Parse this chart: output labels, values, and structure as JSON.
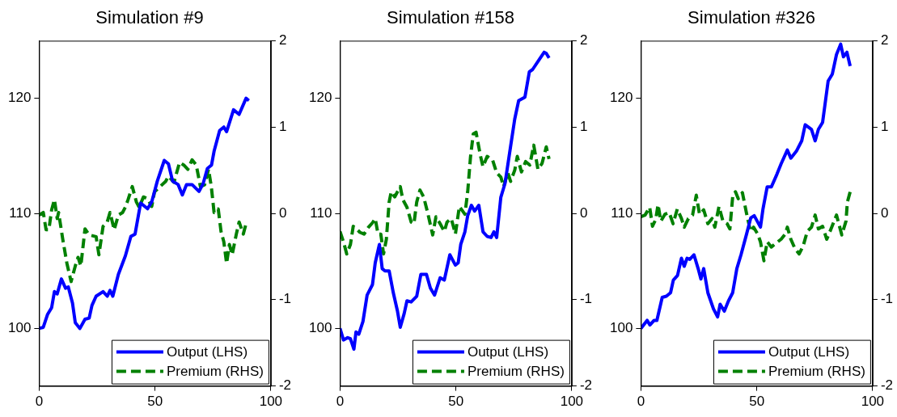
{
  "chart_data": [
    {
      "type": "line",
      "title": "Simulation #9",
      "xlim": [
        0,
        100
      ],
      "xticks": [
        0,
        50,
        100
      ],
      "ylim": [
        95,
        125
      ],
      "yticks": [
        100,
        110,
        120
      ],
      "y2lim": [
        -2,
        2
      ],
      "y2ticks": [
        -2,
        -1,
        0,
        1,
        2
      ],
      "legend": "bottom right",
      "series": [
        {
          "name": "Output (LHS)",
          "color": "#0000ff",
          "line_style": "solid",
          "axis": "y",
          "x": [
            0,
            1.8,
            3.6,
            5.4,
            6.6,
            7.8,
            9.6,
            11.4,
            12.6,
            14.4,
            15.6,
            17.6,
            19.8,
            21.6,
            22.8,
            24.6,
            27.6,
            29.4,
            30.6,
            31.8,
            34.2,
            37.2,
            39.6,
            41.4,
            43.8,
            46.8,
            48.6,
            51,
            54,
            55.8,
            57.6,
            60,
            61.8,
            63.6,
            66,
            69,
            70.8,
            72.6,
            74.4,
            75.5,
            77.9,
            79.7,
            80.9,
            83.9,
            86.3,
            89.3,
            90.5
          ],
          "values": [
            100,
            100.1,
            101.2,
            101.8,
            103.2,
            103,
            104.3,
            103.5,
            103.6,
            102.2,
            100.5,
            100,
            100.8,
            100.9,
            102,
            102.8,
            103.2,
            102.8,
            103.3,
            102.8,
            104.7,
            106.3,
            108,
            108.2,
            110.9,
            110.4,
            111,
            112.8,
            114.6,
            114.3,
            112.8,
            112.5,
            111.6,
            112.5,
            112.5,
            111.9,
            112.6,
            113.9,
            114.2,
            115.4,
            117.2,
            117.5,
            117.1,
            119,
            118.6,
            120,
            119.8
          ]
        },
        {
          "name": "Premium (RHS)",
          "color": "#008000",
          "line_style": "dashed",
          "axis": "y2",
          "x": [
            0,
            1.8,
            3,
            4.2,
            5.4,
            6.6,
            7.8,
            8.4,
            10.2,
            12,
            13.8,
            15.6,
            16.8,
            18,
            19.8,
            21.6,
            24.6,
            25.8,
            27.6,
            29.4,
            30.6,
            32.4,
            34.2,
            36,
            37.2,
            38.4,
            40.2,
            42,
            43.2,
            45,
            46.8,
            48.6,
            49.8,
            52.2,
            54.6,
            55.8,
            58.2,
            60.6,
            62.4,
            64.2,
            66,
            67.8,
            69.6,
            71.4,
            73.1,
            74.3,
            75.5,
            77.3,
            78.5,
            79.7,
            80.9,
            82.1,
            83.3,
            85.1,
            86.3,
            88.1,
            89.3,
            90.5
          ],
          "values": [
            -0.02,
            0.01,
            -0.19,
            -0.19,
            0.04,
            0.16,
            -0.06,
            0.01,
            -0.3,
            -0.58,
            -0.79,
            -0.61,
            -0.51,
            -0.61,
            -0.18,
            -0.25,
            -0.27,
            -0.48,
            -0.15,
            -0.1,
            0.01,
            -0.19,
            -0.02,
            0.01,
            0.07,
            0.16,
            0.31,
            0.13,
            0.07,
            0.19,
            0.17,
            0.08,
            0.25,
            0.31,
            0.37,
            0.43,
            0.36,
            0.59,
            0.56,
            0.51,
            0.62,
            0.56,
            0.31,
            0.33,
            0.51,
            0.31,
            0.01,
            0.05,
            -0.21,
            -0.33,
            -0.58,
            -0.36,
            -0.48,
            -0.24,
            -0.1,
            -0.24,
            -0.12,
            -0.13
          ]
        }
      ]
    },
    {
      "type": "line",
      "title": "Simulation #158",
      "xlim": [
        0,
        100
      ],
      "xticks": [
        0,
        50,
        100
      ],
      "ylim": [
        95,
        125
      ],
      "yticks": [
        100,
        110,
        120
      ],
      "y2lim": [
        -2,
        2
      ],
      "y2ticks": [
        -2,
        -1,
        0,
        1,
        2
      ],
      "legend": "bottom right",
      "series": [
        {
          "name": "Output (LHS)",
          "color": "#0000ff",
          "line_style": "solid",
          "axis": "y",
          "x": [
            0,
            1.5,
            3.3,
            4.5,
            6,
            6.9,
            8.1,
            9.9,
            11.7,
            14,
            15.2,
            17,
            18.2,
            19.4,
            21.2,
            23,
            24.8,
            26,
            27.7,
            28.9,
            30.7,
            33.1,
            34.9,
            37.3,
            39,
            40.8,
            43.2,
            45,
            47.4,
            49.8,
            51,
            52.1,
            53.9,
            55.1,
            56.7,
            58.1,
            59.9,
            61.7,
            63.5,
            65.2,
            66.4,
            67.6,
            69.4,
            71.2,
            73.6,
            75.4,
            77.1,
            79.8,
            81.7,
            83.1,
            86.1,
            88.1,
            89,
            90.2
          ],
          "values": [
            100,
            99,
            99.2,
            99.1,
            98.2,
            99.7,
            99.5,
            100.6,
            102.9,
            103.8,
            105.7,
            107.3,
            105.2,
            105,
            105,
            103.1,
            101.5,
            100.1,
            101.3,
            102.4,
            102.3,
            102.8,
            104.7,
            104.7,
            103.5,
            102.9,
            104.4,
            104.2,
            106.4,
            105.5,
            105.7,
            107.3,
            108.4,
            109.8,
            110.7,
            110.2,
            110.7,
            108.4,
            108,
            107.9,
            108.4,
            107.9,
            111.4,
            112.6,
            115.8,
            118.2,
            119.8,
            120.1,
            122.3,
            122.5,
            123.4,
            124,
            123.9,
            123.5
          ]
        },
        {
          "name": "Premium (RHS)",
          "color": "#008000",
          "line_style": "dashed",
          "axis": "y2",
          "x": [
            0,
            1.5,
            2.9,
            4.5,
            5.7,
            7.5,
            8.6,
            10.4,
            12.3,
            14,
            15.2,
            16.4,
            17.6,
            18.8,
            20,
            21.2,
            22.1,
            23.6,
            24.8,
            26,
            27.1,
            28.9,
            30.7,
            31.9,
            33.1,
            34.5,
            36.1,
            37.8,
            40,
            41.4,
            43.2,
            45,
            46.2,
            48,
            49.8,
            51.5,
            53.9,
            55.1,
            56.3,
            57.5,
            58.7,
            60.5,
            61.7,
            63.5,
            65.8,
            67.6,
            69.4,
            70.6,
            72.4,
            73.6,
            75.4,
            76.5,
            78.3,
            80.1,
            81.9,
            83.6,
            85.4,
            87.2,
            89,
            90.2
          ],
          "values": [
            -0.21,
            -0.33,
            -0.47,
            -0.36,
            -0.15,
            -0.19,
            -0.22,
            -0.24,
            -0.16,
            -0.11,
            -0.06,
            -0.24,
            -0.24,
            -0.47,
            -0.3,
            0.13,
            0.25,
            0.19,
            0.25,
            0.31,
            0.16,
            0.07,
            -0.1,
            -0.12,
            0.13,
            0.27,
            0.19,
            0.01,
            -0.25,
            -0.04,
            -0.12,
            -0.21,
            -0.1,
            -0.06,
            -0.24,
            0.08,
            -0.01,
            0.25,
            0.65,
            0.92,
            0.94,
            0.68,
            0.54,
            0.66,
            0.62,
            0.47,
            0.42,
            0.31,
            0.47,
            0.37,
            0.5,
            0.66,
            0.48,
            0.6,
            0.56,
            0.79,
            0.51,
            0.58,
            0.77,
            0.63
          ]
        }
      ]
    },
    {
      "type": "line",
      "title": "Simulation #326",
      "xlim": [
        0,
        100
      ],
      "xticks": [
        0,
        50,
        100
      ],
      "ylim": [
        95,
        125
      ],
      "yticks": [
        100,
        110,
        120
      ],
      "y2lim": [
        -2,
        2
      ],
      "y2ticks": [
        -2,
        -1,
        0,
        1,
        2
      ],
      "legend": "bottom right",
      "series": [
        {
          "name": "Output (LHS)",
          "color": "#0000ff",
          "line_style": "solid",
          "axis": "y",
          "x": [
            0,
            2.7,
            3.9,
            5.7,
            6.9,
            9.2,
            11,
            12.8,
            14,
            15.8,
            17.5,
            18.7,
            19.9,
            21.1,
            22.9,
            24.7,
            25.9,
            27.1,
            28.9,
            31.3,
            33.1,
            34.2,
            36,
            37.8,
            39.6,
            41.4,
            43.2,
            45.6,
            47.4,
            48.9,
            51.6,
            52.7,
            54.5,
            56.3,
            58.7,
            60.5,
            63.2,
            64.7,
            67.1,
            69.4,
            70.9,
            73.6,
            75.2,
            76.6,
            78.4,
            80.8,
            82.6,
            84.4,
            86.2,
            87.4,
            88.9,
            90.3
          ],
          "values": [
            100,
            100.7,
            100.3,
            100.7,
            100.7,
            102.7,
            102.8,
            103.1,
            104.2,
            104.6,
            106.1,
            105.4,
            106.1,
            106,
            106.4,
            105.2,
            104.3,
            105.2,
            103.1,
            101.7,
            101,
            102.1,
            101.5,
            102.4,
            103.1,
            105.2,
            106.4,
            108.2,
            109.6,
            109.8,
            108.8,
            110.4,
            112.3,
            112.3,
            113.4,
            114.3,
            115.5,
            114.8,
            115.4,
            116.3,
            117.7,
            117.3,
            116.3,
            117.3,
            117.9,
            121.5,
            122.1,
            123.8,
            124.7,
            123.6,
            124,
            122.8
          ]
        },
        {
          "name": "Premium (RHS)",
          "color": "#008000",
          "line_style": "dashed",
          "axis": "y2",
          "x": [
            0,
            1.8,
            3.8,
            5,
            6.4,
            7.4,
            8.6,
            10.4,
            12.2,
            13.9,
            15.7,
            17.5,
            18.7,
            20.5,
            22.3,
            23.9,
            25.3,
            27.1,
            28.9,
            30.7,
            31.9,
            33.7,
            35.4,
            37.2,
            38.4,
            39.6,
            40.8,
            42,
            43.8,
            45.5,
            47.3,
            48.6,
            50.4,
            51.6,
            53.1,
            54.5,
            56.3,
            58.1,
            60.5,
            62.3,
            63.2,
            64.7,
            66.5,
            68.3,
            70,
            71.8,
            73.6,
            75.2,
            76.6,
            78.4,
            80.2,
            81.9,
            84.4,
            86.7,
            88.5,
            89.1,
            90.3
          ],
          "values": [
            -0.04,
            -0.02,
            0.07,
            -0.15,
            -0.07,
            0.1,
            -0.09,
            -0.01,
            0.01,
            -0.12,
            0.05,
            -0.06,
            -0.16,
            -0.06,
            -0.02,
            0.21,
            -0.01,
            0.04,
            -0.12,
            -0.06,
            -0.16,
            0.08,
            -0.09,
            -0.12,
            -0.18,
            0.19,
            0.25,
            0.17,
            0.24,
            0.01,
            -0.21,
            -0.16,
            -0.24,
            -0.33,
            -0.55,
            -0.33,
            -0.39,
            -0.35,
            -0.3,
            -0.24,
            -0.16,
            -0.3,
            -0.41,
            -0.47,
            -0.38,
            -0.21,
            -0.16,
            -0.02,
            -0.18,
            -0.15,
            -0.3,
            -0.19,
            -0.02,
            -0.25,
            -0.09,
            0.13,
            0.25
          ]
        }
      ]
    }
  ]
}
